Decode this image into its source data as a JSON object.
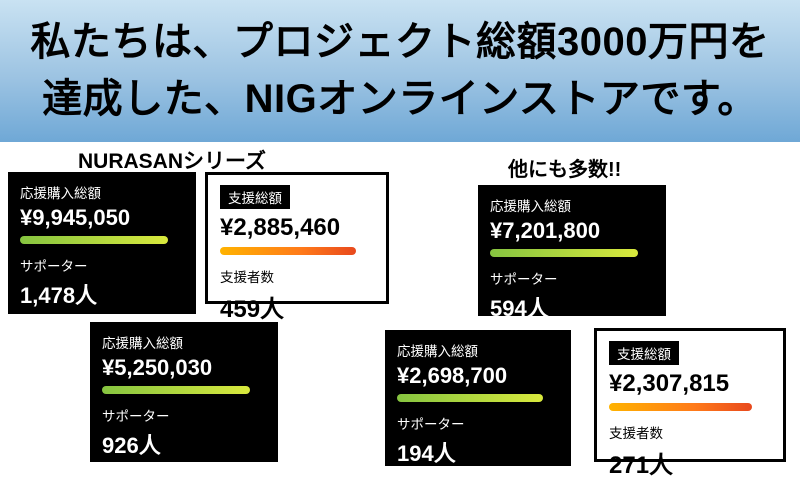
{
  "banner": {
    "line1": "私たちは、プロジェクト総額3000万円を",
    "line2": "達成した、NIGオンラインストアです。"
  },
  "section_titles": {
    "left": "NURASANシリーズ",
    "right": "他にも多数!!"
  },
  "cards": [
    {
      "theme": "dark",
      "bar": "green",
      "label1": "応援購入総額",
      "amount": "¥9,945,050",
      "label2": "サポーター",
      "count": "1,478人"
    },
    {
      "theme": "light",
      "bar": "orange",
      "label1": "支援総額",
      "amount": "¥2,885,460",
      "label2": "支援者数",
      "count": "459人"
    },
    {
      "theme": "dark",
      "bar": "green",
      "label1": "応援購入総額",
      "amount": "¥7,201,800",
      "label2": "サポーター",
      "count": "594人"
    },
    {
      "theme": "dark",
      "bar": "green",
      "label1": "応援購入総額",
      "amount": "¥5,250,030",
      "label2": "サポーター",
      "count": "926人"
    },
    {
      "theme": "dark",
      "bar": "green",
      "label1": "応援購入総額",
      "amount": "¥2,698,700",
      "label2": "サポーター",
      "count": "194人"
    },
    {
      "theme": "light",
      "bar": "orange",
      "label1": "支援総額",
      "amount": "¥2,307,815",
      "label2": "支援者数",
      "count": "271人"
    }
  ],
  "colors": {
    "banner_top": "#c9e2f2",
    "banner_mid": "#9cc3e2",
    "banner_bottom": "#6fa8d6",
    "bar_green_start": "#86c440",
    "bar_green_end": "#d9e93d",
    "bar_orange_start": "#ffb300",
    "bar_orange_mid": "#ff7a1a",
    "bar_orange_end": "#e8491d",
    "card_dark_bg": "#000000",
    "card_light_bg": "#ffffff"
  }
}
